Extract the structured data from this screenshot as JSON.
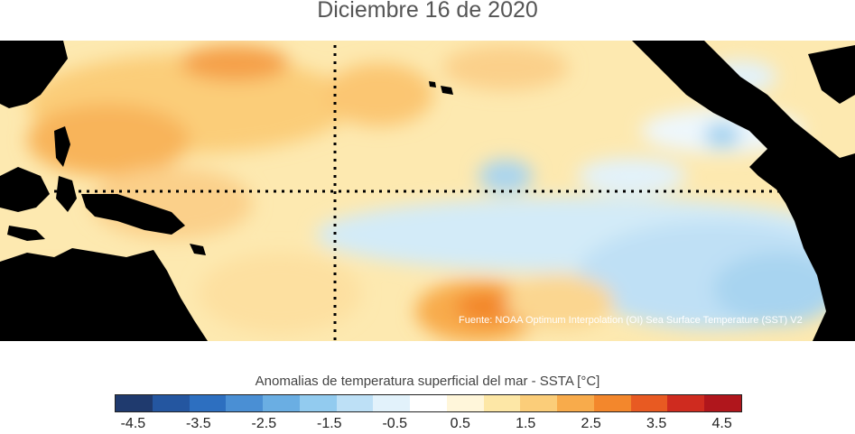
{
  "title": "Diciembre 16 de 2020",
  "source": "Fuente: NOAA Optimum Interpolation (OI) Sea Surface Temperature (SST) V2",
  "colorbar": {
    "title": "Anomalias de temperatura superficial del mar - SSTA  [°C]",
    "colors": [
      "#1f3a6e",
      "#2456a0",
      "#2d6fc0",
      "#4a8fd4",
      "#6aaee3",
      "#92cbef",
      "#bde0f6",
      "#e2f2fb",
      "#ffffff",
      "#fff6da",
      "#fde7a6",
      "#fbcd79",
      "#f8ab4b",
      "#f3872c",
      "#e85a22",
      "#cf2b1f",
      "#b0161c"
    ],
    "ticks": [
      "-4.5",
      "-3.5",
      "-2.5",
      "-1.5",
      "-0.5",
      "0.5",
      "1.5",
      "2.5",
      "3.5",
      "4.5"
    ]
  }
}
